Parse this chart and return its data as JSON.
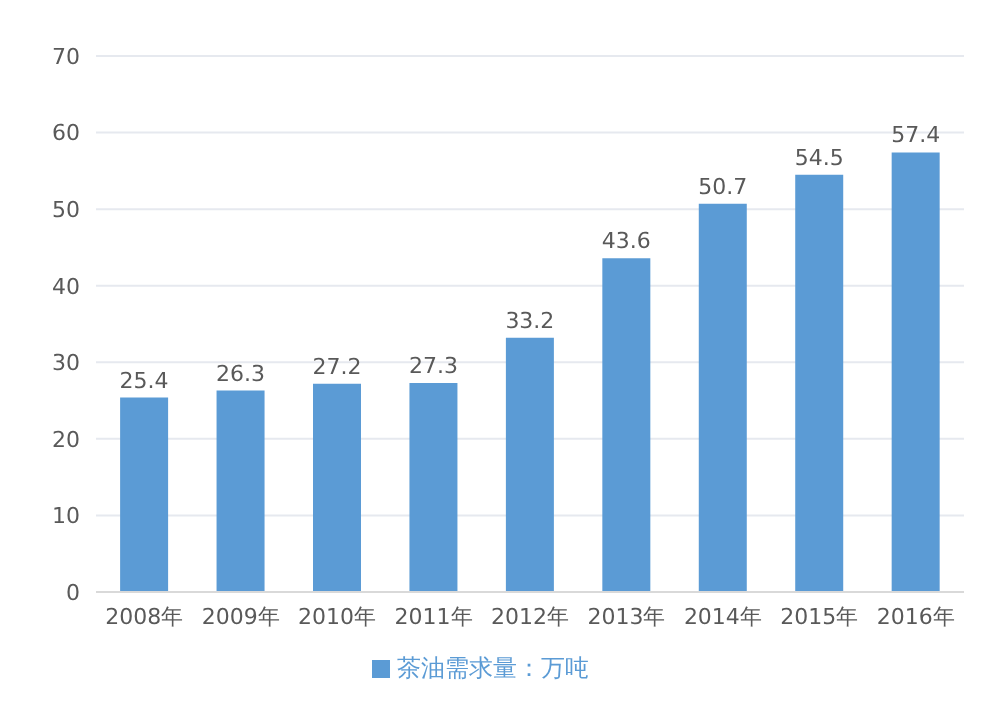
{
  "chart_data": {
    "type": "bar",
    "categories": [
      "2008年",
      "2009年",
      "2010年",
      "2011年",
      "2012年",
      "2013年",
      "2014年",
      "2015年",
      "2016年"
    ],
    "series": [
      {
        "name": "茶油需求量：万吨",
        "color": "#5b9bd5",
        "values": [
          25.4,
          26.3,
          27.2,
          27.3,
          33.2,
          43.6,
          50.7,
          54.5,
          57.4
        ]
      }
    ],
    "ylim": [
      0,
      70
    ],
    "yticks": [
      0,
      10,
      20,
      30,
      40,
      50,
      60,
      70
    ],
    "grid": "y",
    "legend": "bottom",
    "data_labels": true
  }
}
